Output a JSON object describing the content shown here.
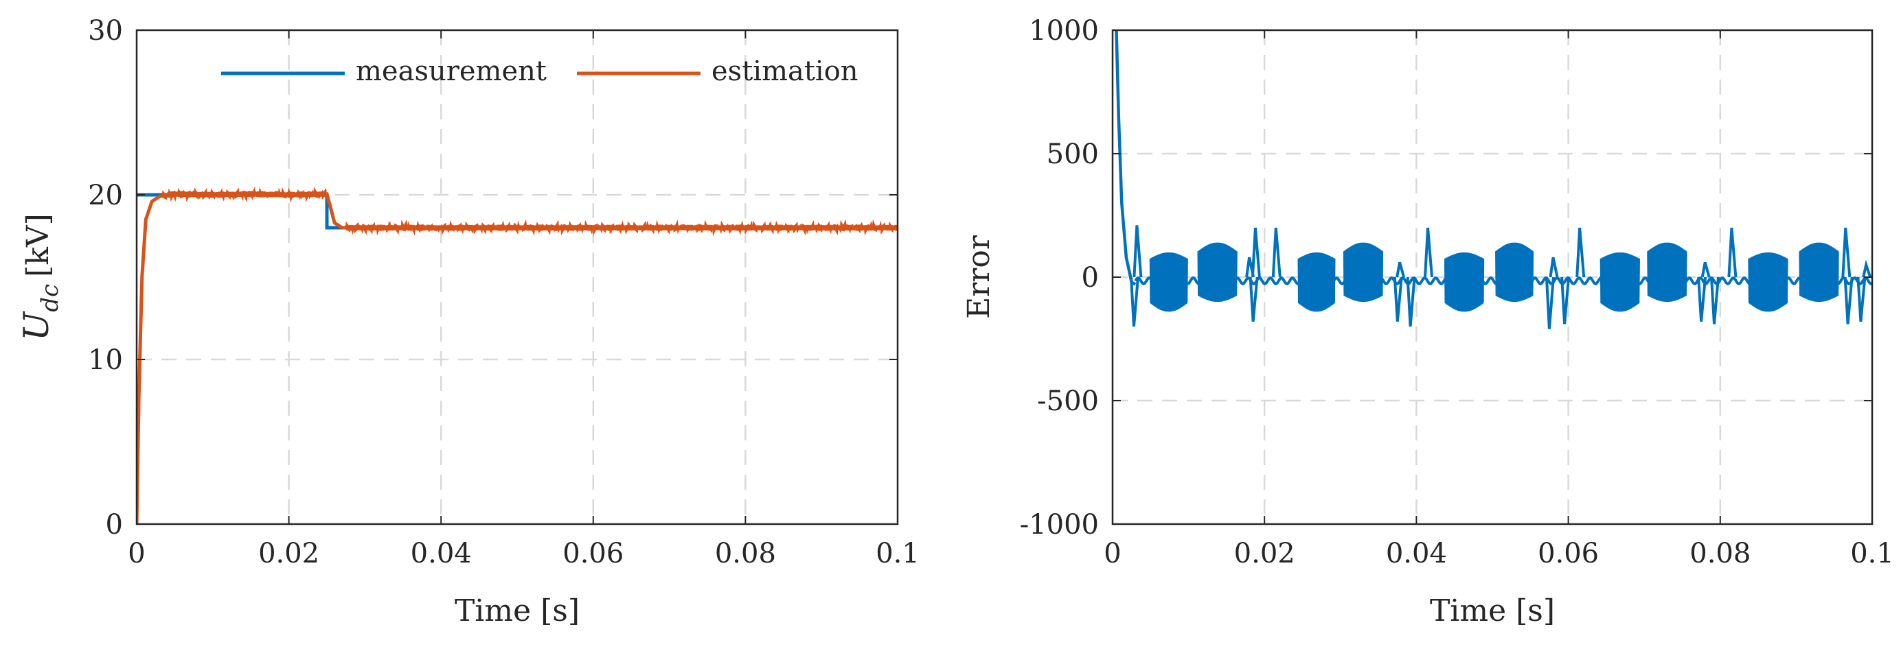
{
  "chart_data": [
    {
      "type": "line",
      "xlabel": "Time [s]",
      "ylabel_main": "U",
      "ylabel_sub": "dc",
      "ylabel_unit": "[kV]",
      "xlim": [
        0,
        0.1
      ],
      "ylim": [
        0,
        30
      ],
      "xticks": [
        0,
        0.02,
        0.04,
        0.06,
        0.08,
        0.1
      ],
      "xtick_labels": [
        "0",
        "0.02",
        "0.04",
        "0.06",
        "0.08",
        "0.1"
      ],
      "yticks": [
        0,
        10,
        20,
        30
      ],
      "ytick_labels": [
        "0",
        "10",
        "20",
        "30"
      ],
      "grid": true,
      "legend_position": "top-right",
      "series": [
        {
          "name": "measurement",
          "color": "#0072BD",
          "x": [
            0,
            0.025,
            0.025,
            0.1
          ],
          "y": [
            20,
            20,
            18,
            18
          ]
        },
        {
          "name": "estimation",
          "color": "#D95319",
          "x": [
            0,
            0.0003,
            0.0007,
            0.0012,
            0.002,
            0.003,
            0.005,
            0.01,
            0.015,
            0.02,
            0.025,
            0.0255,
            0.026,
            0.027,
            0.03,
            0.05,
            0.07,
            0.09,
            0.1
          ],
          "y": [
            0,
            8,
            15,
            18.5,
            19.6,
            19.9,
            20.05,
            20.0,
            20.05,
            20.0,
            20.05,
            19.2,
            18.3,
            18.0,
            18.0,
            18.0,
            18.0,
            18.0,
            18.0
          ]
        }
      ]
    },
    {
      "type": "line",
      "xlabel": "Time [s]",
      "ylabel": "Error",
      "xlim": [
        0,
        0.1
      ],
      "ylim": [
        -1000,
        1000
      ],
      "xticks": [
        0,
        0.02,
        0.04,
        0.06,
        0.08,
        0.1
      ],
      "xtick_labels": [
        "0",
        "0.02",
        "0.04",
        "0.06",
        "0.08",
        "0.1"
      ],
      "yticks": [
        -1000,
        -500,
        0,
        500,
        1000
      ],
      "ytick_labels": [
        "-1000",
        "-500",
        "0",
        "500",
        "1000"
      ],
      "grid": true,
      "series": [
        {
          "name": "error",
          "color": "#0072BD",
          "initial_decay": {
            "x": [
              0.0005,
              0.0008,
              0.0012,
              0.0018,
              0.0025,
              0.003
            ],
            "y": [
              1000,
              650,
              300,
              80,
              -20,
              -30
            ]
          },
          "oscillation_bursts": [
            {
              "start": 0.005,
              "end": 0.0098,
              "upper": 100,
              "lower": -140
            },
            {
              "start": 0.0113,
              "end": 0.0163,
              "upper": 140,
              "lower": -100
            },
            {
              "start": 0.0245,
              "end": 0.0292,
              "upper": 100,
              "lower": -140
            },
            {
              "start": 0.0305,
              "end": 0.0355,
              "upper": 140,
              "lower": -100
            },
            {
              "start": 0.0438,
              "end": 0.0488,
              "upper": 100,
              "lower": -140
            },
            {
              "start": 0.0505,
              "end": 0.0553,
              "upper": 140,
              "lower": -100
            },
            {
              "start": 0.0643,
              "end": 0.0693,
              "upper": 100,
              "lower": -140
            },
            {
              "start": 0.0705,
              "end": 0.0755,
              "upper": 140,
              "lower": -100
            },
            {
              "start": 0.0838,
              "end": 0.0888,
              "upper": 100,
              "lower": -140
            },
            {
              "start": 0.0905,
              "end": 0.0955,
              "upper": 140,
              "lower": -100
            }
          ],
          "spikes": [
            {
              "x": 0.0028,
              "y": -200
            },
            {
              "x": 0.0032,
              "y": 210
            },
            {
              "x": 0.018,
              "y": 80
            },
            {
              "x": 0.0185,
              "y": -180
            },
            {
              "x": 0.0188,
              "y": 200
            },
            {
              "x": 0.0215,
              "y": 200
            },
            {
              "x": 0.0375,
              "y": -180
            },
            {
              "x": 0.0378,
              "y": 60
            },
            {
              "x": 0.0392,
              "y": -200
            },
            {
              "x": 0.0415,
              "y": 200
            },
            {
              "x": 0.0575,
              "y": -210
            },
            {
              "x": 0.058,
              "y": 80
            },
            {
              "x": 0.0595,
              "y": -190
            },
            {
              "x": 0.0615,
              "y": 200
            },
            {
              "x": 0.0775,
              "y": -180
            },
            {
              "x": 0.078,
              "y": 60
            },
            {
              "x": 0.0792,
              "y": -190
            },
            {
              "x": 0.0815,
              "y": 200
            },
            {
              "x": 0.0965,
              "y": 200
            },
            {
              "x": 0.0968,
              "y": -190
            },
            {
              "x": 0.0985,
              "y": -180
            },
            {
              "x": 0.0992,
              "y": 50
            }
          ],
          "baseline": 0
        }
      ]
    }
  ]
}
